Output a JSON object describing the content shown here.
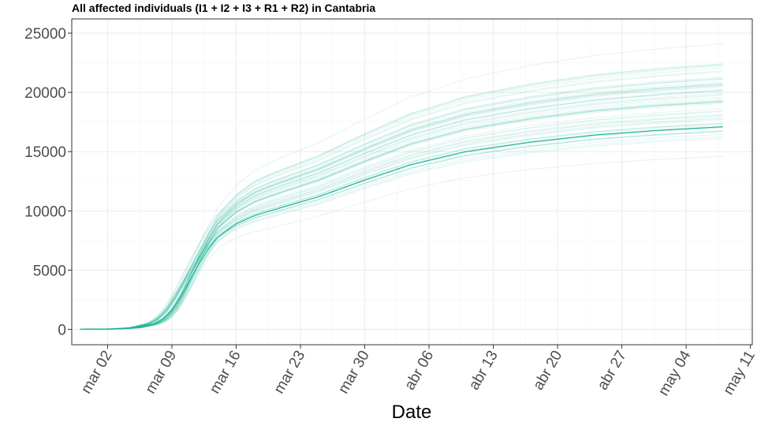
{
  "chart_data": {
    "type": "line",
    "title": "All affected individuals (I1 + I2 + I3 + R1 + R2) in  Cantabria",
    "xlabel": "Date",
    "ylabel": "",
    "x_axis": {
      "start": "2020-02-28",
      "end": "2020-05-08",
      "tick_dates": [
        "2020-03-02",
        "2020-03-09",
        "2020-03-16",
        "2020-03-23",
        "2020-03-30",
        "2020-04-06",
        "2020-04-13",
        "2020-04-20",
        "2020-04-27",
        "2020-05-04",
        "2020-05-11"
      ],
      "tick_labels": [
        "mar 02",
        "mar 09",
        "mar 16",
        "mar 23",
        "mar 30",
        "abr 06",
        "abr 13",
        "abr 20",
        "abr 27",
        "may 04",
        "may 11"
      ]
    },
    "y_axis": {
      "ylim": [
        -1300,
        26200
      ],
      "ticks": [
        0,
        5000,
        10000,
        15000,
        20000,
        25000
      ],
      "tick_labels": [
        "0",
        "5000",
        "10000",
        "15000",
        "20000",
        "25000"
      ]
    },
    "grid": true,
    "legend": "none",
    "colors": {
      "main": "#1ab394",
      "ensemble": "#1ab394",
      "grid": "#ebebeb",
      "panel_border": "#333333"
    },
    "main_series": {
      "name": "",
      "x": [
        "2020-02-28",
        "2020-03-01",
        "2020-03-03",
        "2020-03-05",
        "2020-03-07",
        "2020-03-08",
        "2020-03-09",
        "2020-03-10",
        "2020-03-11",
        "2020-03-12",
        "2020-03-13",
        "2020-03-14",
        "2020-03-16",
        "2020-03-18",
        "2020-03-21",
        "2020-03-25",
        "2020-03-30",
        "2020-04-04",
        "2020-04-10",
        "2020-04-17",
        "2020-04-24",
        "2020-05-01",
        "2020-05-08"
      ],
      "y": [
        0,
        10,
        40,
        130,
        450,
        850,
        1600,
        2800,
        4200,
        5600,
        6800,
        7800,
        8900,
        9600,
        10300,
        11200,
        12600,
        13900,
        15000,
        15800,
        16400,
        16800,
        17100
      ]
    },
    "ensemble": {
      "count": 60,
      "final_min": 14600,
      "final_max": 24100,
      "note_series_scale": "each ensemble line follows the main curve shape scaled toward its final value"
    }
  }
}
